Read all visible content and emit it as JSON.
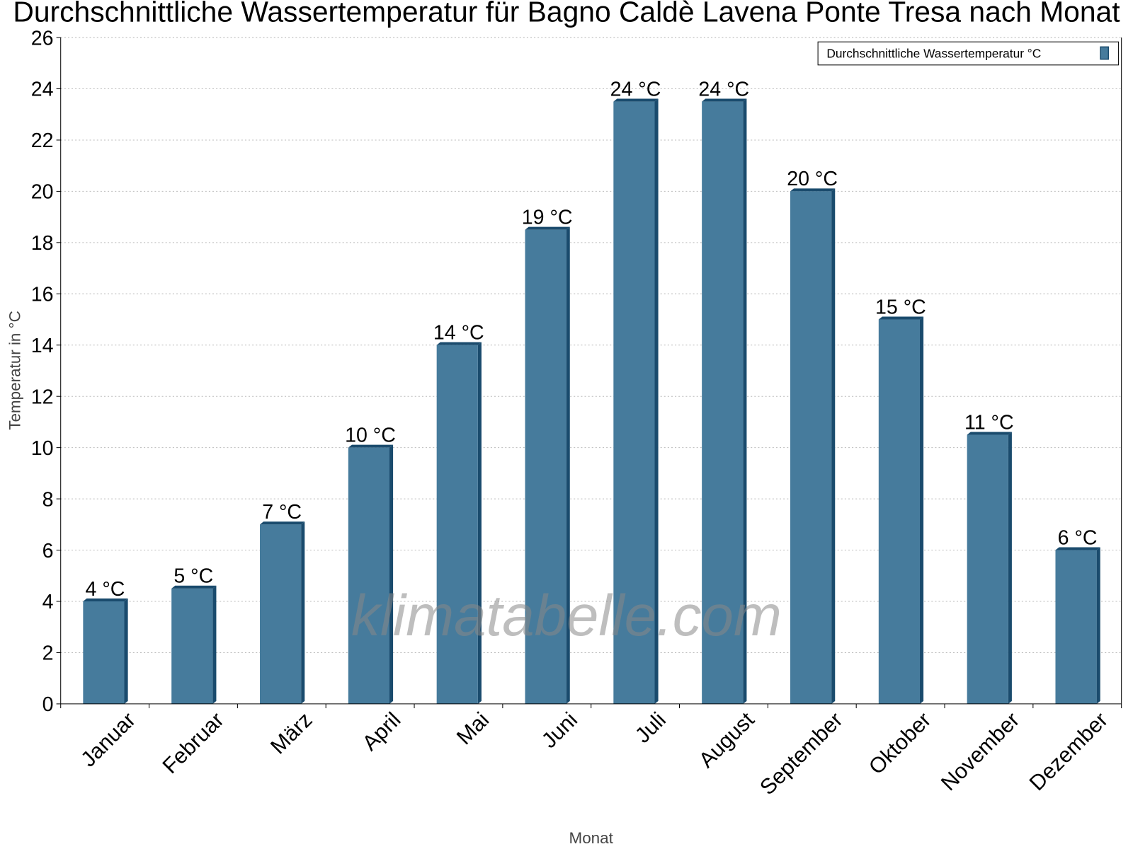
{
  "chart_data": {
    "type": "bar",
    "title": "Durchschnittliche Wassertemperatur für Bagno Caldè Lavena Ponte Tresa nach Monat",
    "xlabel": "Monat",
    "ylabel": "Temperatur in °C",
    "ylim": [
      0,
      26
    ],
    "yticks": [
      0,
      2,
      4,
      6,
      8,
      10,
      12,
      14,
      16,
      18,
      20,
      22,
      24,
      26
    ],
    "grid": true,
    "legend_position": "top-right",
    "categories": [
      "Januar",
      "Februar",
      "März",
      "April",
      "Mai",
      "Juni",
      "Juli",
      "August",
      "September",
      "Oktober",
      "November",
      "Dezember"
    ],
    "series": [
      {
        "name": "Durchschnittliche Wassertemperatur °C",
        "values": [
          4,
          4.5,
          7,
          10,
          14,
          18.5,
          23.5,
          23.5,
          20,
          15,
          10.5,
          6
        ],
        "labels": [
          "4 °C",
          "5 °C",
          "7 °C",
          "10 °C",
          "14 °C",
          "19 °C",
          "24 °C",
          "24 °C",
          "20 °C",
          "15 °C",
          "11 °C",
          "6 °C"
        ],
        "color": "#467b9c",
        "shadow_color": "#1a4b6d"
      }
    ],
    "watermark": "klimatabelle.com"
  }
}
